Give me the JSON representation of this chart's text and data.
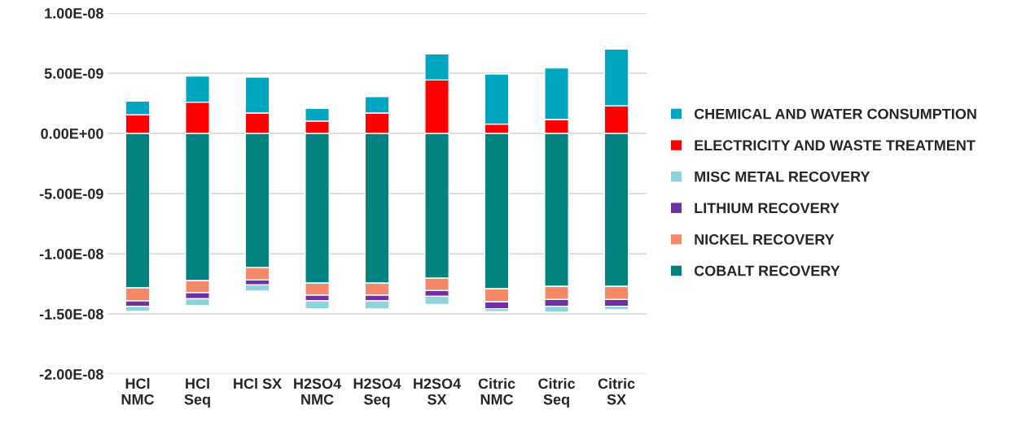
{
  "chart_data": {
    "type": "bar",
    "stacked": true,
    "categories": [
      "HCl\nNMC",
      "HCl\nSeq",
      "HCl SX",
      "H2SO4\nNMC",
      "H2SO4\nSeq",
      "H2SO4\nSX",
      "Citric\nNMC",
      "Citric\nSeq",
      "Citric\nSX"
    ],
    "series": [
      {
        "name": "COBALT RECOVERY",
        "color": "#00827f",
        "values": [
          -1.283e-08,
          -1.224e-08,
          -1.115e-08,
          -1.244e-08,
          -1.244e-08,
          -1.203e-08,
          -1.292e-08,
          -1.271e-08,
          -1.271e-08
        ]
      },
      {
        "name": "NICKEL RECOVERY",
        "color": "#f4896a",
        "values": [
          -1.08e-09,
          -1e-09,
          -1.03e-09,
          -1e-09,
          -1e-09,
          -1.03e-09,
          -1.08e-09,
          -1.09e-09,
          -1.09e-09
        ]
      },
      {
        "name": "LITHIUM RECOVERY",
        "color": "#7030a0",
        "values": [
          -4.7e-10,
          -5e-10,
          -4.1e-10,
          -4.7e-10,
          -4.7e-10,
          -4.7e-10,
          -5.6e-10,
          -5.6e-10,
          -5.6e-10
        ]
      },
      {
        "name": "MISC METAL RECOVERY",
        "color": "#8ed3dc",
        "values": [
          -4.1e-10,
          -5.6e-10,
          -5e-10,
          -6.5e-10,
          -6.8e-10,
          -6.8e-10,
          -2.4e-10,
          -5e-10,
          -2.9e-10
        ]
      },
      {
        "name": "ELECTRICITY AND WASTE TREATMENT",
        "color": "#ff0000",
        "values": [
          1.54e-09,
          2.6e-09,
          1.69e-09,
          1.03e-09,
          1.69e-09,
          4.44e-09,
          7.7e-10,
          1.15e-09,
          2.28e-09
        ]
      },
      {
        "name": "CHEMICAL AND WATER CONSUMPTION",
        "color": "#00a5c0",
        "values": [
          1.15e-09,
          2.16e-09,
          2.99e-09,
          1.04e-09,
          1.36e-09,
          2.16e-09,
          4.17e-09,
          4.29e-09,
          4.73e-09
        ]
      }
    ],
    "ylim": [
      -2e-08,
      1e-08
    ],
    "yticks": [
      {
        "value": -2e-08,
        "label": "-2.00E-08"
      },
      {
        "value": -1.5e-08,
        "label": "-1.50E-08"
      },
      {
        "value": -1e-08,
        "label": "-1.00E-08"
      },
      {
        "value": -5e-09,
        "label": "-5.00E-09"
      },
      {
        "value": 0,
        "label": "0.00E+00"
      },
      {
        "value": 5e-09,
        "label": "5.00E-09"
      },
      {
        "value": 1e-08,
        "label": "1.00E-08"
      }
    ],
    "grid": "y",
    "legend": "right"
  }
}
